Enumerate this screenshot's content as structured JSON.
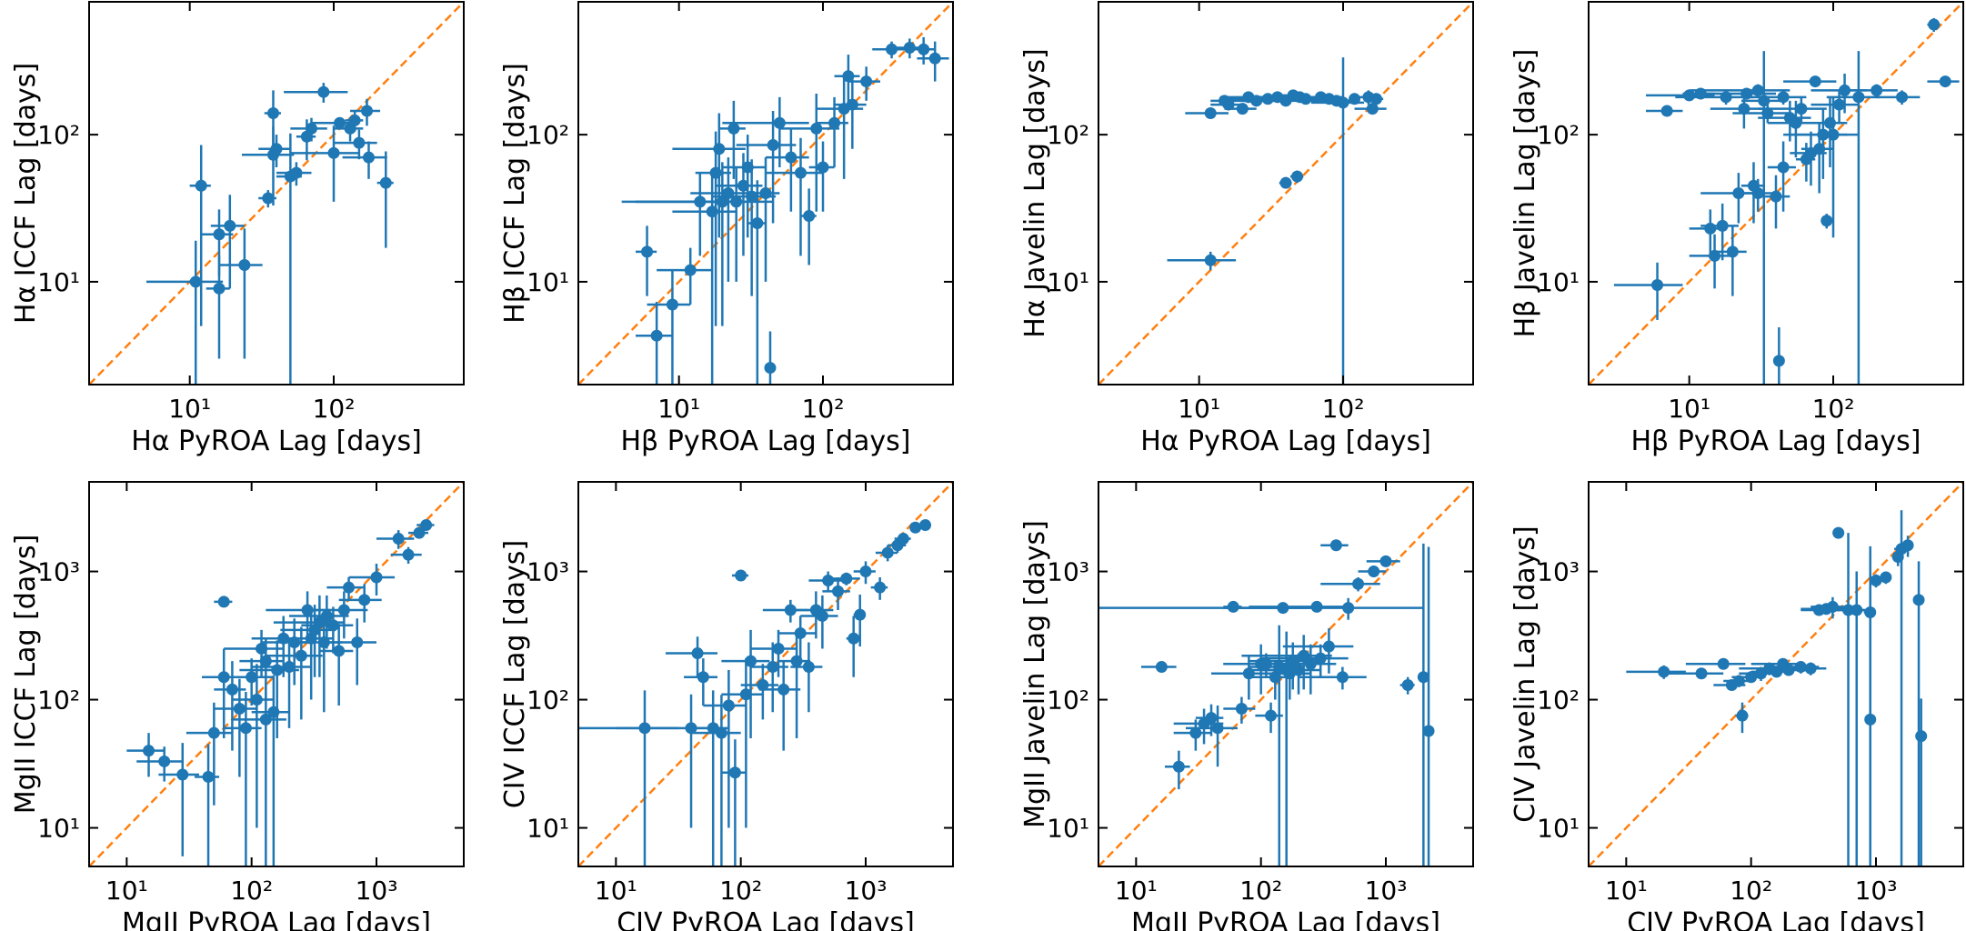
{
  "chart_data": [
    {
      "type": "scatter",
      "xlabel": "Hα PyROA Lag [days]",
      "ylabel": "Hα ICCF Lag [days]",
      "xscale": "log",
      "yscale": "log",
      "xlim": [
        2,
        800
      ],
      "ylim": [
        2,
        800
      ],
      "xticks": [
        {
          "value": 10,
          "label": "10¹"
        },
        {
          "value": 100,
          "label": "10²"
        }
      ],
      "yticks": [
        {
          "value": 10,
          "label": "10¹"
        },
        {
          "value": 100,
          "label": "10²"
        }
      ],
      "color": "#1f77b4",
      "identity_line": true,
      "identity_color": "#ff7f0e",
      "x": [
        11,
        12,
        16,
        16,
        19,
        24,
        35,
        38,
        38,
        40,
        50,
        55,
        65,
        70,
        85,
        100,
        110,
        130,
        140,
        150,
        170,
        175,
        230
      ],
      "y": [
        10,
        45,
        21,
        9,
        24,
        13,
        37,
        73,
        140,
        80,
        52,
        55,
        97,
        110,
        195,
        75,
        120,
        110,
        125,
        88,
        145,
        70,
        47
      ],
      "xerr": [
        6,
        2,
        4,
        3,
        5,
        8,
        5,
        15,
        5,
        10,
        10,
        15,
        10,
        20,
        40,
        50,
        40,
        30,
        20,
        50,
        40,
        60,
        30
      ],
      "yerr": [
        9,
        40,
        10,
        6,
        15,
        10,
        5,
        40,
        60,
        20,
        50,
        10,
        30,
        20,
        30,
        40,
        10,
        20,
        20,
        20,
        30,
        20,
        30
      ]
    },
    {
      "type": "scatter",
      "xlabel": "Hβ PyROA Lag [days]",
      "ylabel": "Hβ ICCF Lag [days]",
      "xscale": "log",
      "yscale": "log",
      "xlim": [
        2,
        800
      ],
      "ylim": [
        2,
        800
      ],
      "xticks": [
        {
          "value": 10,
          "label": "10¹"
        },
        {
          "value": 100,
          "label": "10²"
        }
      ],
      "yticks": [
        {
          "value": 10,
          "label": "10¹"
        },
        {
          "value": 100,
          "label": "10²"
        }
      ],
      "color": "#1f77b4",
      "identity_line": true,
      "identity_color": "#ff7f0e",
      "x": [
        6,
        7,
        9,
        12,
        14,
        43,
        17,
        18,
        19,
        20,
        22,
        24,
        25,
        28,
        30,
        32,
        35,
        40,
        45,
        50,
        60,
        70,
        80,
        90,
        100,
        120,
        140,
        150,
        160,
        200,
        300,
        400,
        500,
        600
      ],
      "y": [
        16,
        4.3,
        7,
        12,
        35,
        2.6,
        30,
        55,
        80,
        35,
        40,
        110,
        35,
        45,
        60,
        38,
        25,
        40,
        85,
        120,
        70,
        55,
        28,
        110,
        60,
        120,
        150,
        250,
        160,
        230,
        380,
        390,
        380,
        330
      ],
      "xerr": [
        1,
        2,
        3,
        5,
        10,
        3,
        8,
        5,
        10,
        15,
        10,
        5,
        20,
        10,
        10,
        15,
        5,
        10,
        20,
        30,
        20,
        30,
        10,
        40,
        20,
        30,
        50,
        30,
        40,
        50,
        80,
        100,
        100,
        150
      ],
      "yerr": [
        8,
        3,
        5,
        5,
        20,
        2,
        28,
        50,
        60,
        30,
        30,
        60,
        25,
        30,
        40,
        30,
        24,
        30,
        60,
        60,
        40,
        40,
        15,
        80,
        30,
        60,
        100,
        100,
        80,
        60,
        50,
        60,
        80,
        100
      ]
    },
    {
      "type": "scatter",
      "xlabel": "Hα PyROA Lag [days]",
      "ylabel": "Hα Javelin Lag [days]",
      "xscale": "log",
      "yscale": "log",
      "xlim": [
        2,
        800
      ],
      "ylim": [
        2,
        800
      ],
      "xticks": [
        {
          "value": 10,
          "label": "10¹"
        },
        {
          "value": 100,
          "label": "10²"
        }
      ],
      "yticks": [
        {
          "value": 10,
          "label": "10¹"
        },
        {
          "value": 100,
          "label": "10²"
        }
      ],
      "color": "#1f77b4",
      "identity_line": true,
      "identity_color": "#ff7f0e",
      "x": [
        12,
        12,
        15,
        16,
        20,
        22,
        25,
        30,
        35,
        40,
        45,
        50,
        55,
        70,
        80,
        90,
        100,
        120,
        150,
        160,
        170,
        48,
        40
      ],
      "y": [
        14,
        140,
        170,
        160,
        150,
        180,
        170,
        175,
        180,
        170,
        185,
        180,
        175,
        180,
        175,
        170,
        165,
        175,
        180,
        150,
        175,
        52,
        47
      ],
      "xerr": [
        6,
        4,
        3,
        4,
        5,
        8,
        10,
        15,
        10,
        20,
        10,
        15,
        20,
        30,
        20,
        30,
        40,
        10,
        20,
        40,
        20,
        5,
        4
      ],
      "yerr": [
        2,
        10,
        15,
        10,
        10,
        15,
        10,
        10,
        10,
        10,
        15,
        10,
        10,
        10,
        10,
        10,
        170,
        10,
        20,
        10,
        15,
        5,
        4
      ]
    },
    {
      "type": "scatter",
      "xlabel": "Hβ PyROA Lag [days]",
      "ylabel": "Hβ Javelin Lag [days]",
      "xscale": "log",
      "yscale": "log",
      "xlim": [
        2,
        800
      ],
      "ylim": [
        2,
        800
      ],
      "xticks": [
        {
          "value": 10,
          "label": "10¹"
        },
        {
          "value": 100,
          "label": "10²"
        }
      ],
      "yticks": [
        {
          "value": 10,
          "label": "10¹"
        },
        {
          "value": 100,
          "label": "10²"
        }
      ],
      "color": "#1f77b4",
      "identity_line": true,
      "identity_color": "#ff7f0e",
      "x": [
        6,
        7,
        10,
        12,
        14,
        15,
        17,
        18,
        20,
        22,
        24,
        25,
        28,
        30,
        33,
        35,
        40,
        42,
        45,
        50,
        55,
        60,
        65,
        70,
        75,
        80,
        85,
        90,
        95,
        100,
        110,
        120,
        150,
        200,
        300,
        500,
        600,
        45,
        30
      ],
      "y": [
        9.5,
        145,
        185,
        190,
        23,
        15,
        24,
        180,
        16,
        40,
        150,
        190,
        45,
        200,
        170,
        140,
        38,
        2.9,
        60,
        130,
        120,
        150,
        68,
        75,
        230,
        80,
        100,
        26,
        120,
        100,
        160,
        200,
        180,
        200,
        180,
        560,
        230,
        180,
        40
      ],
      "xerr": [
        3,
        2,
        5,
        3,
        4,
        5,
        5,
        10,
        5,
        10,
        10,
        15,
        5,
        20,
        10,
        15,
        10,
        3,
        10,
        20,
        20,
        30,
        10,
        20,
        30,
        20,
        40,
        5,
        30,
        50,
        40,
        50,
        60,
        80,
        100,
        50,
        150,
        20,
        10
      ],
      "yerr": [
        4,
        10,
        10,
        10,
        8,
        6,
        10,
        20,
        8,
        15,
        40,
        10,
        20,
        20,
        200,
        20,
        15,
        2,
        30,
        40,
        50,
        30,
        20,
        30,
        20,
        40,
        50,
        3,
        60,
        80,
        40,
        60,
        190,
        20,
        20,
        60,
        20,
        20,
        10
      ]
    },
    {
      "type": "scatter",
      "xlabel": "MgII PyROA Lag [days]",
      "ylabel": "MgII ICCF Lag [days]",
      "xscale": "log",
      "yscale": "log",
      "xlim": [
        5,
        5000
      ],
      "ylim": [
        5,
        5000
      ],
      "xticks": [
        {
          "value": 10,
          "label": "10¹"
        },
        {
          "value": 100,
          "label": "10²"
        },
        {
          "value": 1000,
          "label": "10³"
        }
      ],
      "yticks": [
        {
          "value": 10,
          "label": "10¹"
        },
        {
          "value": 100,
          "label": "10²"
        },
        {
          "value": 1000,
          "label": "10³"
        }
      ],
      "color": "#1f77b4",
      "identity_line": true,
      "identity_color": "#ff7f0e",
      "x": [
        15,
        20,
        28,
        45,
        50,
        60,
        70,
        80,
        90,
        100,
        110,
        120,
        130,
        150,
        160,
        180,
        200,
        220,
        250,
        280,
        300,
        320,
        350,
        380,
        400,
        450,
        500,
        550,
        600,
        700,
        800,
        1000,
        1500,
        1800,
        2200,
        2500,
        60,
        130
      ],
      "y": [
        40,
        33,
        26,
        25,
        55,
        580,
        120,
        85,
        60,
        150,
        100,
        250,
        200,
        80,
        170,
        300,
        180,
        280,
        220,
        500,
        300,
        350,
        400,
        280,
        450,
        380,
        240,
        500,
        750,
        280,
        600,
        900,
        1800,
        1350,
        2000,
        2300,
        150,
        70
      ],
      "xerr": [
        5,
        8,
        10,
        10,
        20,
        10,
        20,
        30,
        30,
        50,
        40,
        60,
        50,
        50,
        80,
        80,
        100,
        100,
        120,
        150,
        150,
        150,
        200,
        150,
        200,
        200,
        150,
        300,
        200,
        300,
        300,
        400,
        500,
        500,
        400,
        400,
        20,
        60
      ],
      "yerr": [
        15,
        10,
        20,
        20,
        40,
        40,
        80,
        60,
        55,
        60,
        90,
        100,
        100,
        75,
        120,
        150,
        120,
        150,
        150,
        200,
        200,
        200,
        250,
        200,
        200,
        150,
        150,
        200,
        150,
        150,
        200,
        250,
        300,
        200,
        200,
        150,
        100,
        65
      ]
    },
    {
      "type": "scatter",
      "xlabel": "CIV PyROA Lag [days]",
      "ylabel": "CIV ICCF Lag [days]",
      "xscale": "log",
      "yscale": "log",
      "xlim": [
        5,
        5000
      ],
      "ylim": [
        5,
        5000
      ],
      "xticks": [
        {
          "value": 10,
          "label": "10¹"
        },
        {
          "value": 100,
          "label": "10²"
        },
        {
          "value": 1000,
          "label": "10³"
        }
      ],
      "yticks": [
        {
          "value": 10,
          "label": "10¹"
        },
        {
          "value": 100,
          "label": "10²"
        },
        {
          "value": 1000,
          "label": "10³"
        }
      ],
      "color": "#1f77b4",
      "identity_line": true,
      "identity_color": "#ff7f0e",
      "x": [
        17,
        40,
        45,
        50,
        60,
        70,
        80,
        90,
        100,
        110,
        120,
        150,
        180,
        200,
        220,
        250,
        280,
        300,
        350,
        400,
        450,
        500,
        600,
        700,
        800,
        1000,
        1300,
        1500,
        1800,
        2000,
        2500,
        3000,
        900
      ],
      "y": [
        60,
        60,
        230,
        150,
        60,
        55,
        90,
        27,
        930,
        110,
        200,
        130,
        180,
        250,
        120,
        500,
        200,
        330,
        180,
        500,
        450,
        850,
        700,
        880,
        300,
        1000,
        750,
        1400,
        1600,
        1800,
        2200,
        2300,
        460
      ],
      "xerr": [
        15,
        30,
        20,
        15,
        20,
        30,
        30,
        20,
        15,
        40,
        50,
        50,
        60,
        80,
        80,
        100,
        80,
        100,
        100,
        150,
        150,
        150,
        150,
        200,
        100,
        200,
        200,
        300,
        300,
        300,
        200,
        200,
        100
      ],
      "yerr": [
        58,
        50,
        80,
        60,
        58,
        54,
        80,
        22,
        30,
        100,
        150,
        60,
        100,
        100,
        80,
        100,
        150,
        120,
        100,
        200,
        200,
        150,
        200,
        100,
        150,
        200,
        150,
        200,
        200,
        200,
        150,
        150,
        200
      ]
    },
    {
      "type": "scatter",
      "xlabel": "MgII PyROA Lag [days]",
      "ylabel": "MgII Javelin Lag [days]",
      "xscale": "log",
      "yscale": "log",
      "xlim": [
        5,
        5000
      ],
      "ylim": [
        5,
        5000
      ],
      "xticks": [
        {
          "value": 10,
          "label": "10¹"
        },
        {
          "value": 100,
          "label": "10²"
        },
        {
          "value": 1000,
          "label": "10³"
        }
      ],
      "yticks": [
        {
          "value": 10,
          "label": "10¹"
        },
        {
          "value": 100,
          "label": "10²"
        },
        {
          "value": 1000,
          "label": "10³"
        }
      ],
      "color": "#1f77b4",
      "identity_line": true,
      "identity_color": "#ff7f0e",
      "x": [
        16,
        22,
        30,
        35,
        40,
        45,
        60,
        70,
        80,
        100,
        110,
        120,
        130,
        150,
        170,
        180,
        200,
        220,
        250,
        280,
        300,
        350,
        400,
        450,
        500,
        600,
        800,
        1000,
        1500,
        2000,
        2200,
        140,
        160
      ],
      "y": [
        180,
        30,
        55,
        65,
        72,
        60,
        530,
        85,
        160,
        190,
        190,
        75,
        150,
        520,
        160,
        200,
        170,
        220,
        190,
        530,
        210,
        260,
        1600,
        150,
        520,
        800,
        1000,
        1200,
        130,
        150,
        57,
        180,
        170
      ],
      "xerr": [
        5,
        5,
        10,
        15,
        10,
        20,
        10,
        20,
        40,
        50,
        60,
        30,
        50,
        100,
        80,
        100,
        100,
        150,
        150,
        200,
        200,
        200,
        100,
        250,
        1500,
        300,
        200,
        300,
        200,
        200,
        100,
        60,
        80
      ],
      "yerr": [
        10,
        10,
        15,
        20,
        20,
        30,
        20,
        20,
        60,
        80,
        40,
        20,
        50,
        30,
        60,
        80,
        60,
        100,
        80,
        50,
        60,
        100,
        50,
        30,
        100,
        100,
        100,
        100,
        20,
        1500,
        1500,
        200,
        170
      ]
    },
    {
      "type": "scatter",
      "xlabel": "CIV PyROA Lag [days]",
      "ylabel": "CIV Javelin Lag [days]",
      "xscale": "log",
      "yscale": "log",
      "xlim": [
        5,
        5000
      ],
      "ylim": [
        5,
        5000
      ],
      "xticks": [
        {
          "value": 10,
          "label": "10¹"
        },
        {
          "value": 100,
          "label": "10²"
        },
        {
          "value": 1000,
          "label": "10³"
        }
      ],
      "yticks": [
        {
          "value": 10,
          "label": "10¹"
        },
        {
          "value": 100,
          "label": "10²"
        },
        {
          "value": 1000,
          "label": "10³"
        }
      ],
      "color": "#1f77b4",
      "identity_line": true,
      "identity_color": "#ff7f0e",
      "x": [
        20,
        40,
        60,
        70,
        80,
        100,
        120,
        140,
        160,
        180,
        200,
        250,
        300,
        350,
        400,
        450,
        500,
        600,
        700,
        900,
        1000,
        1200,
        1500,
        1600,
        1800,
        2200,
        2300,
        85,
        900
      ],
      "y": [
        165,
        160,
        190,
        130,
        140,
        150,
        160,
        175,
        165,
        190,
        170,
        180,
        175,
        500,
        510,
        530,
        2000,
        500,
        500,
        480,
        850,
        900,
        1300,
        1500,
        1600,
        600,
        52,
        75,
        70
      ],
      "xerr": [
        10,
        20,
        30,
        20,
        20,
        30,
        40,
        60,
        60,
        80,
        80,
        100,
        100,
        100,
        150,
        150,
        50,
        200,
        200,
        100,
        100,
        100,
        100,
        200,
        200,
        50,
        50,
        10,
        50
      ],
      "yerr": [
        20,
        10,
        15,
        10,
        15,
        10,
        20,
        20,
        15,
        20,
        15,
        20,
        20,
        30,
        50,
        100,
        100,
        1500,
        500,
        500,
        100,
        100,
        200,
        1500,
        300,
        600,
        50,
        20,
        1500
      ]
    }
  ]
}
